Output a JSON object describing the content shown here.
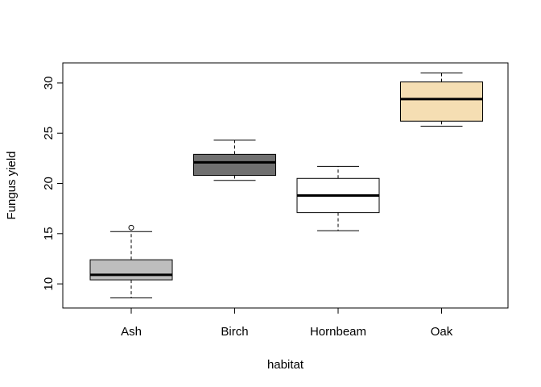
{
  "chart_data": {
    "type": "boxplot",
    "title": "",
    "xlabel": "habitat",
    "ylabel": "Fungus yield",
    "categories": [
      "Ash",
      "Birch",
      "Hornbeam",
      "Oak"
    ],
    "ylim": [
      7.6,
      32.0
    ],
    "yticks": [
      10,
      15,
      20,
      25,
      30
    ],
    "grid": false,
    "boxes": [
      {
        "category": "Ash",
        "whisker_low": 8.6,
        "q1": 10.4,
        "median": 10.9,
        "q3": 12.4,
        "whisker_high": 15.2,
        "outliers": [
          15.6
        ],
        "fill": "#bebebe"
      },
      {
        "category": "Birch",
        "whisker_low": 20.3,
        "q1": 20.8,
        "median": 22.1,
        "q3": 22.9,
        "whisker_high": 24.3,
        "outliers": [],
        "fill": "#707070"
      },
      {
        "category": "Hornbeam",
        "whisker_low": 15.3,
        "q1": 17.1,
        "median": 18.8,
        "q3": 20.5,
        "whisker_high": 21.7,
        "outliers": [],
        "fill": "#ffffff"
      },
      {
        "category": "Oak",
        "whisker_low": 25.7,
        "q1": 26.2,
        "median": 28.4,
        "q3": 30.1,
        "whisker_high": 31.0,
        "outliers": [],
        "fill": "#f5deb3"
      }
    ]
  }
}
